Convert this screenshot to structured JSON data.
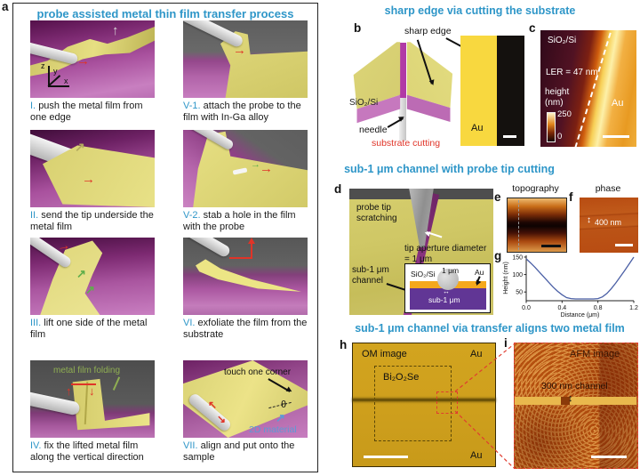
{
  "figure": {
    "panels": {
      "a": "a",
      "b": "b",
      "c": "c",
      "d": "d",
      "e": "e",
      "f": "f",
      "g": "g",
      "h": "h",
      "i": "i"
    }
  },
  "colors": {
    "heading_blue": "#2E96C8",
    "red_annotation": "#E03428",
    "green_annotation": "#7FA84A",
    "blue_2d": "#5B9BD5",
    "chart_line": "#4A5FA5"
  },
  "icons": {
    "arrow_right": "→",
    "arrow_up": "↑",
    "arrow_down": "↓",
    "arrow_up_right": "↗",
    "arrow_down_left": "↙",
    "arrow_down_right": "↘",
    "arrow_up_left": "↖",
    "arrow_up_down": "↕",
    "arrow_left_right": "↔"
  },
  "panel_a": {
    "title": "probe assisted metal thin film transfer process",
    "axis_labels": {
      "z": "z",
      "y": "y",
      "x": "x"
    },
    "steps": [
      {
        "num": "I.",
        "text": "push the metal film from one edge"
      },
      {
        "num": "V-1.",
        "text": "attach the probe to the film with In-Ga alloy"
      },
      {
        "num": "II.",
        "text": "send the tip underside the metal film"
      },
      {
        "num": "V-2.",
        "text": "stab a hole in the film with the probe"
      },
      {
        "num": "III.",
        "text": "lift one side of the metal film"
      },
      {
        "num": "VI.",
        "text": "exfoliate the film from the substrate"
      },
      {
        "num": "IV.",
        "text": "fix the lifted metal film along the vertical direction"
      },
      {
        "num": "VII.",
        "text": "align and put onto the sample"
      }
    ],
    "annotations": {
      "metal_film_folding": "metal film folding",
      "touch_one_corner": "touch one corner",
      "theta": "θ",
      "two_d_material": "2D material"
    }
  },
  "section_sharp_edge": {
    "title": "sharp edge via cutting the substrate",
    "panel_b": {
      "sharp_edge": "sharp edge",
      "substrate": "SiO₂/Si",
      "needle": "needle",
      "substrate_cutting": "substrate cutting",
      "au": "Au"
    },
    "panel_c": {
      "substrate": "SiO₂/Si",
      "ler": "LER = 47 nm",
      "height": "height",
      "unit": "(nm)",
      "cb_max": "250",
      "cb_min": "0",
      "au": "Au"
    }
  },
  "section_probe_cutting": {
    "title": "sub-1 μm channel with probe tip cutting",
    "panel_d": {
      "probe_tip": "probe tip scratching",
      "tip_aperture": "tip aperture diameter = 1 μm",
      "channel": "sub-1 μm channel",
      "inset": {
        "substrate": "SiO₂/Si",
        "one_um": "1 μm",
        "au": "Au",
        "sub1": "sub-1 μm"
      }
    },
    "panel_e": {
      "title": "topography"
    },
    "panel_f": {
      "title": "phase",
      "width_label": "400 nm"
    }
  },
  "chart_data": {
    "type": "line",
    "title": "",
    "xlabel": "Distance (μm)",
    "ylabel": "Height (nm)",
    "x": [
      0,
      0.05,
      0.1,
      0.15,
      0.2,
      0.25,
      0.3,
      0.35,
      0.4,
      0.45,
      0.5,
      0.55,
      0.6,
      0.65,
      0.7,
      0.75,
      0.8,
      0.85,
      0.9,
      0.95,
      1.0,
      1.05,
      1.1,
      1.15,
      1.2
    ],
    "y": [
      145,
      133,
      120,
      106,
      92,
      78,
      64,
      52,
      42,
      34,
      31,
      30,
      30,
      30,
      30,
      30,
      31,
      36,
      46,
      60,
      76,
      94,
      112,
      131,
      150
    ],
    "xlim": [
      0,
      1.2
    ],
    "ylim": [
      25,
      155
    ],
    "xticks": [
      0,
      0.4,
      0.8,
      1.2
    ],
    "xtick_labels": [
      "0.0",
      "0.4",
      "0.8",
      "1.2"
    ],
    "yticks": [
      50,
      100,
      150
    ],
    "line_color": "#4A5FA5",
    "grid": false
  },
  "section_transfer": {
    "title": "sub-1 μm channel via transfer aligns two metal film",
    "panel_h": {
      "om": "OM image",
      "au_top": "Au",
      "material": "Bi₂O₂Se",
      "au_bottom": "Au"
    },
    "panel_i": {
      "afm": "AFM image",
      "channel": "300 nm channel"
    }
  }
}
